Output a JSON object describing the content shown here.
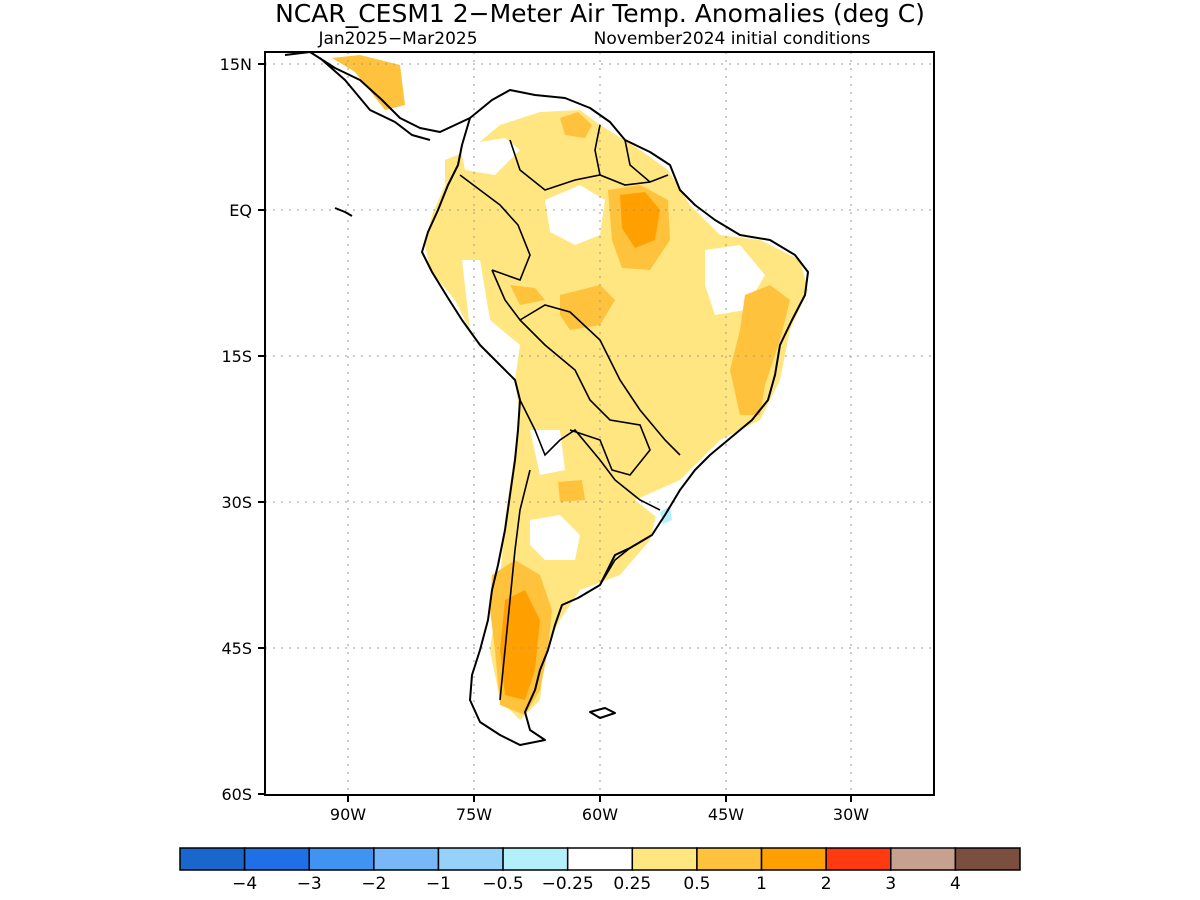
{
  "title": "NCAR_CESM1 2−Meter Air Temp. Anomalies (deg C)",
  "subtitle_left": "Jan2025−Mar2025",
  "subtitle_right": "November2024 initial conditions",
  "map": {
    "lat_labels": [
      "15N",
      "EQ",
      "15S",
      "30S",
      "45S",
      "60S"
    ],
    "lon_labels": [
      "90W",
      "75W",
      "60W",
      "45W",
      "30W"
    ],
    "grid": "dotted",
    "region": "South America"
  },
  "colorbar": {
    "labels": [
      "−4",
      "−3",
      "−2",
      "−1",
      "−0.5",
      "−0.25",
      "0.25",
      "0.5",
      "1",
      "2",
      "3",
      "4"
    ],
    "colors": [
      "#1a66cc",
      "#1f6fe6",
      "#3f94f2",
      "#78b7f8",
      "#96d1fa",
      "#b3f0fb",
      "#ffffff",
      "#ffe680",
      "#ffc23d",
      "#ffa000",
      "#ff3a10",
      "#c8a090",
      "#7a4f40"
    ]
  }
}
